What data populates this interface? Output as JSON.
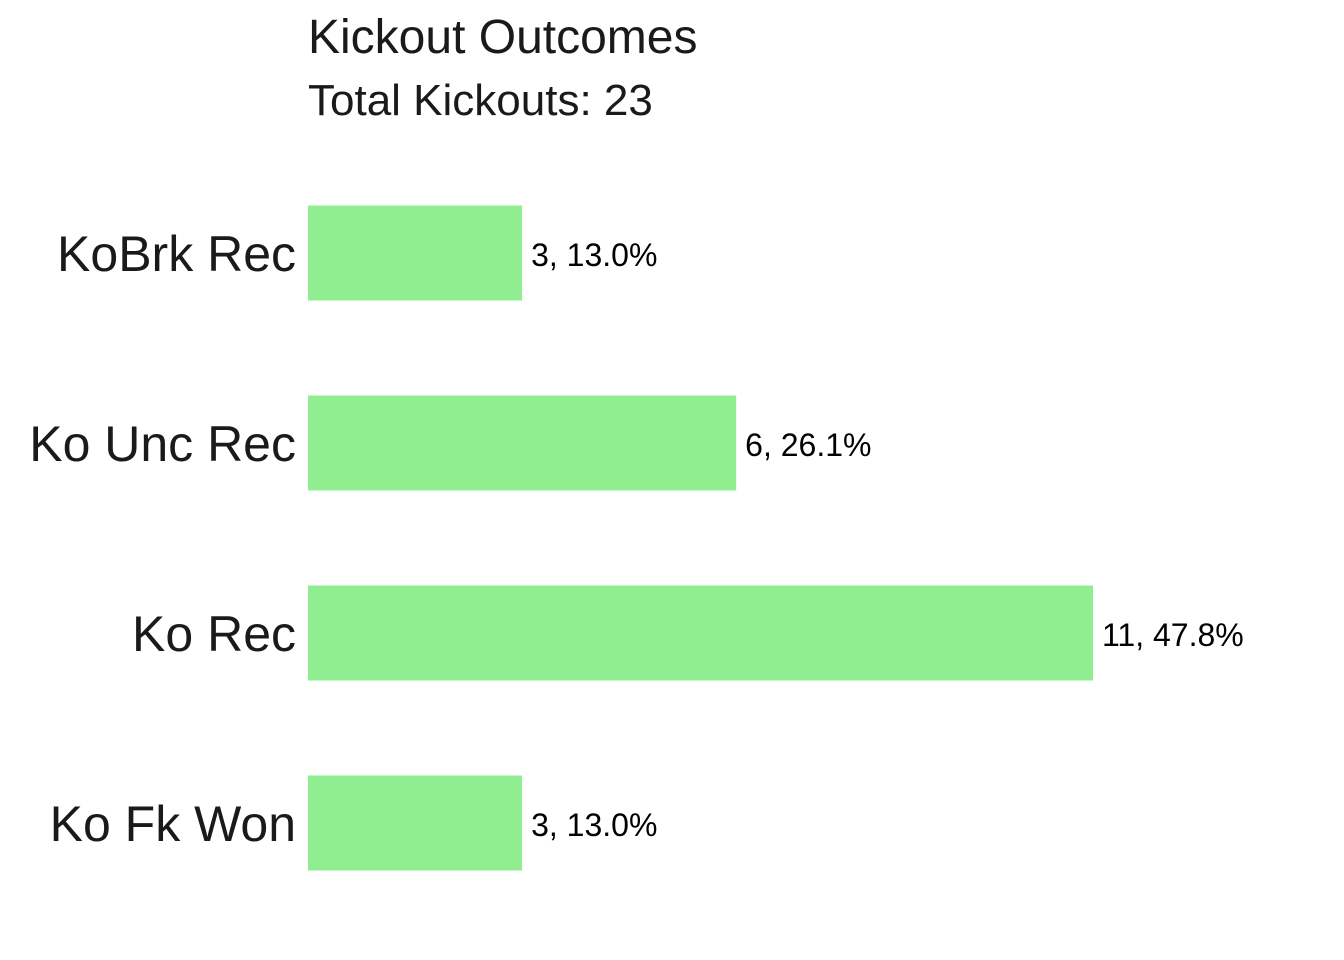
{
  "chart_data": {
    "type": "bar",
    "orientation": "horizontal",
    "title": "Kickout Outcomes",
    "subtitle": "Total Kickouts: 23",
    "xlabel": "",
    "ylabel": "",
    "categories": [
      "KoBrk Rec",
      "Ko Unc Rec",
      "Ko Rec",
      "Ko Fk Won"
    ],
    "values": [
      3,
      6,
      11,
      3
    ],
    "data_labels": [
      "3, 13.0%",
      "6, 26.1%",
      "11, 47.8%",
      "3, 13.0%"
    ],
    "xlim": [
      0,
      11
    ],
    "bar_color": "#90EE90",
    "grid": false,
    "legend": "none"
  }
}
